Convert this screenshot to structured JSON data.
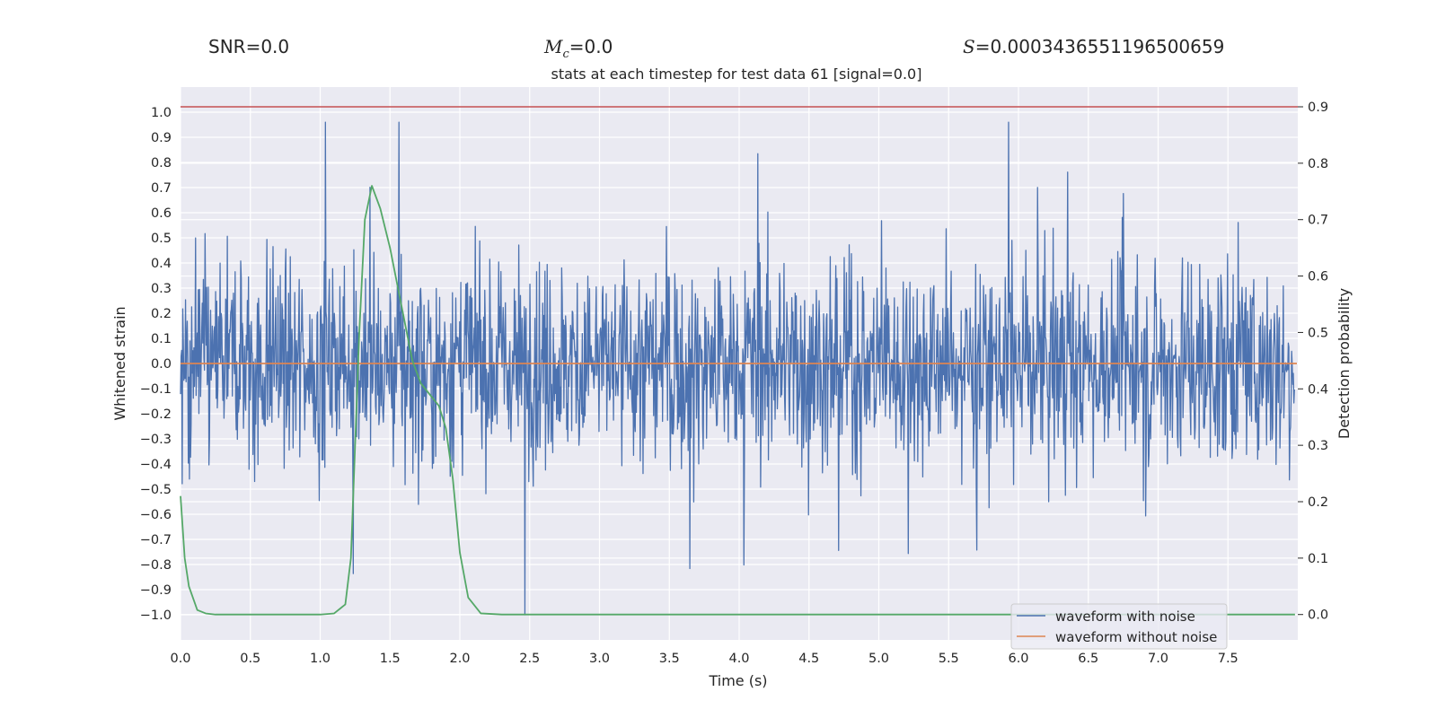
{
  "header": {
    "snr_label": "SNR",
    "snr_value": "=0.0",
    "mc_symbol": "M",
    "mc_sub": "c",
    "mc_value": "=0.0",
    "s_symbol": "S",
    "s_value": "=0.0003436551196500659"
  },
  "colors": {
    "background": "#eaeaf2",
    "grid": "#ffffff",
    "noisy": "#4c72b0",
    "clean": "#dd8452",
    "probability": "#55a868",
    "threshold": "#c44e52"
  },
  "chart_data": {
    "type": "line",
    "title": "stats at each timestep for test data 61 [signal=0.0]",
    "xlabel": "Time (s)",
    "ylabel": "Whitened strain",
    "y2label": "Detection probability",
    "xlim": [
      0,
      8.0
    ],
    "ylim": [
      -1.1,
      1.1
    ],
    "y2lim": [
      -0.045,
      0.935
    ],
    "x_ticks": [
      "0.0",
      "0.5",
      "1.0",
      "1.5",
      "2.0",
      "2.5",
      "3.0",
      "3.5",
      "4.0",
      "4.5",
      "5.0",
      "5.5",
      "6.0",
      "6.5",
      "7.0",
      "7.5"
    ],
    "y_ticks": [
      "1.0",
      "0.9",
      "0.8",
      "0.7",
      "0.6",
      "0.5",
      "0.4",
      "0.3",
      "0.2",
      "0.1",
      "0.0",
      "-0.1",
      "-0.2",
      "-0.3",
      "-0.4",
      "-0.5",
      "-0.6",
      "-0.7",
      "-0.8",
      "-0.9",
      "-1.0"
    ],
    "y2_ticks": [
      "0.9",
      "0.8",
      "0.7",
      "0.6",
      "0.5",
      "0.4",
      "0.3",
      "0.2",
      "0.1",
      "0.0"
    ],
    "threshold": 0.9,
    "legend": {
      "position": "bottom-right",
      "entries": [
        "waveform with noise",
        "waveform without noise"
      ]
    },
    "series": [
      {
        "name": "waveform with noise",
        "axis": "left",
        "peak_amplitude": 1.0,
        "sample_count": 2000
      },
      {
        "name": "waveform without noise",
        "axis": "left",
        "x": [
          0,
          8.0
        ],
        "values": [
          0,
          0
        ]
      },
      {
        "name": "detection probability",
        "axis": "right",
        "x": [
          0.0,
          0.03,
          0.06,
          0.12,
          0.18,
          0.25,
          0.5,
          0.8,
          1.0,
          1.1,
          1.18,
          1.22,
          1.28,
          1.32,
          1.37,
          1.43,
          1.5,
          1.58,
          1.66,
          1.72,
          1.85,
          1.9,
          1.95,
          2.0,
          2.06,
          2.15,
          2.3,
          3.0,
          4.0,
          5.0,
          6.0,
          7.0,
          7.98
        ],
        "values": [
          0.21,
          0.1,
          0.05,
          0.008,
          0.002,
          0.0,
          0.0,
          0.0,
          0.0,
          0.002,
          0.018,
          0.1,
          0.5,
          0.7,
          0.76,
          0.72,
          0.65,
          0.55,
          0.45,
          0.41,
          0.37,
          0.33,
          0.24,
          0.11,
          0.03,
          0.002,
          0.0,
          0.0,
          0.0,
          0.0,
          0.0,
          0.0,
          0.0
        ]
      }
    ]
  }
}
